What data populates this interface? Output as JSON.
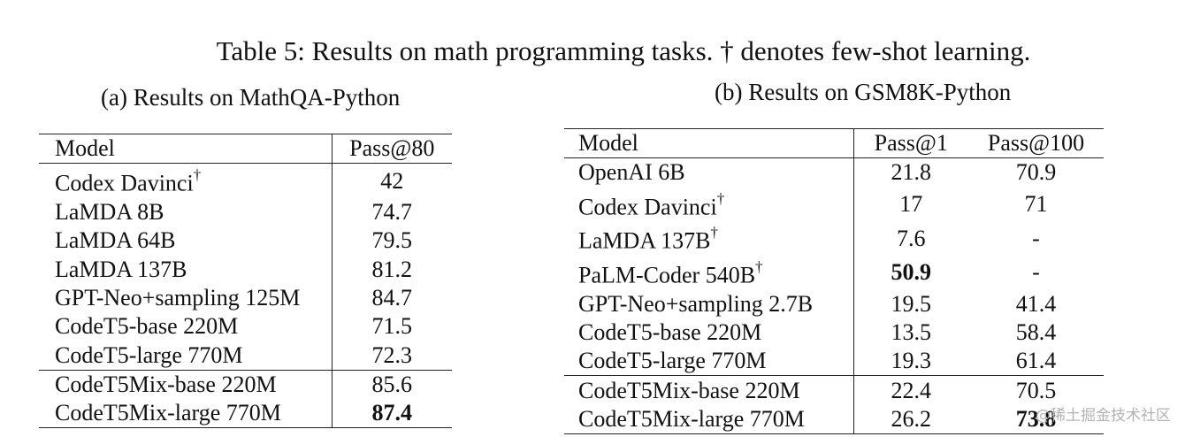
{
  "caption": "Table 5: Results on math programming tasks. † denotes few-shot learning.",
  "table_a": {
    "subcaption": "(a) Results on MathQA-Python",
    "header": [
      "Model",
      "Pass@80"
    ],
    "rows": [
      {
        "model": "Codex Davinci",
        "dagger": "†",
        "pass80": "42"
      },
      {
        "model": "LaMDA 8B",
        "pass80": "74.7"
      },
      {
        "model": "LaMDA 64B",
        "pass80": "79.5"
      },
      {
        "model": "LaMDA 137B",
        "pass80": "81.2"
      },
      {
        "model": "GPT-Neo+sampling 125M",
        "pass80": "84.7"
      },
      {
        "model": "CodeT5-base 220M",
        "pass80": "71.5"
      },
      {
        "model": "CodeT5-large 770M",
        "pass80": "72.3"
      },
      {
        "model": "CodeT5Mix-base 220M",
        "pass80": "85.6"
      },
      {
        "model": "CodeT5Mix-large 770M",
        "pass80": "87.4"
      }
    ]
  },
  "table_b": {
    "subcaption": "(b) Results on GSM8K-Python",
    "header": [
      "Model",
      "Pass@1",
      "Pass@100"
    ],
    "rows": [
      {
        "model": "OpenAI 6B",
        "pass1": "21.8",
        "pass100": "70.9"
      },
      {
        "model": "Codex Davinci",
        "dagger": "†",
        "pass1": "17",
        "pass100": "71"
      },
      {
        "model": "LaMDA 137B",
        "dagger": "†",
        "pass1": "7.6",
        "pass100": "-"
      },
      {
        "model": "PaLM-Coder 540B",
        "dagger": "†",
        "pass1": "50.9",
        "pass100": "-"
      },
      {
        "model": "GPT-Neo+sampling 2.7B",
        "pass1": "19.5",
        "pass100": "41.4"
      },
      {
        "model": "CodeT5-base 220M",
        "pass1": "13.5",
        "pass100": "58.4"
      },
      {
        "model": "CodeT5-large 770M",
        "pass1": "19.3",
        "pass100": "61.4"
      },
      {
        "model": "CodeT5Mix-base 220M",
        "pass1": "22.4",
        "pass100": "70.5"
      },
      {
        "model": "CodeT5Mix-large 770M",
        "pass1": "26.2",
        "pass100": "73.8"
      }
    ]
  },
  "watermark": "@稀土掘金技术社区"
}
